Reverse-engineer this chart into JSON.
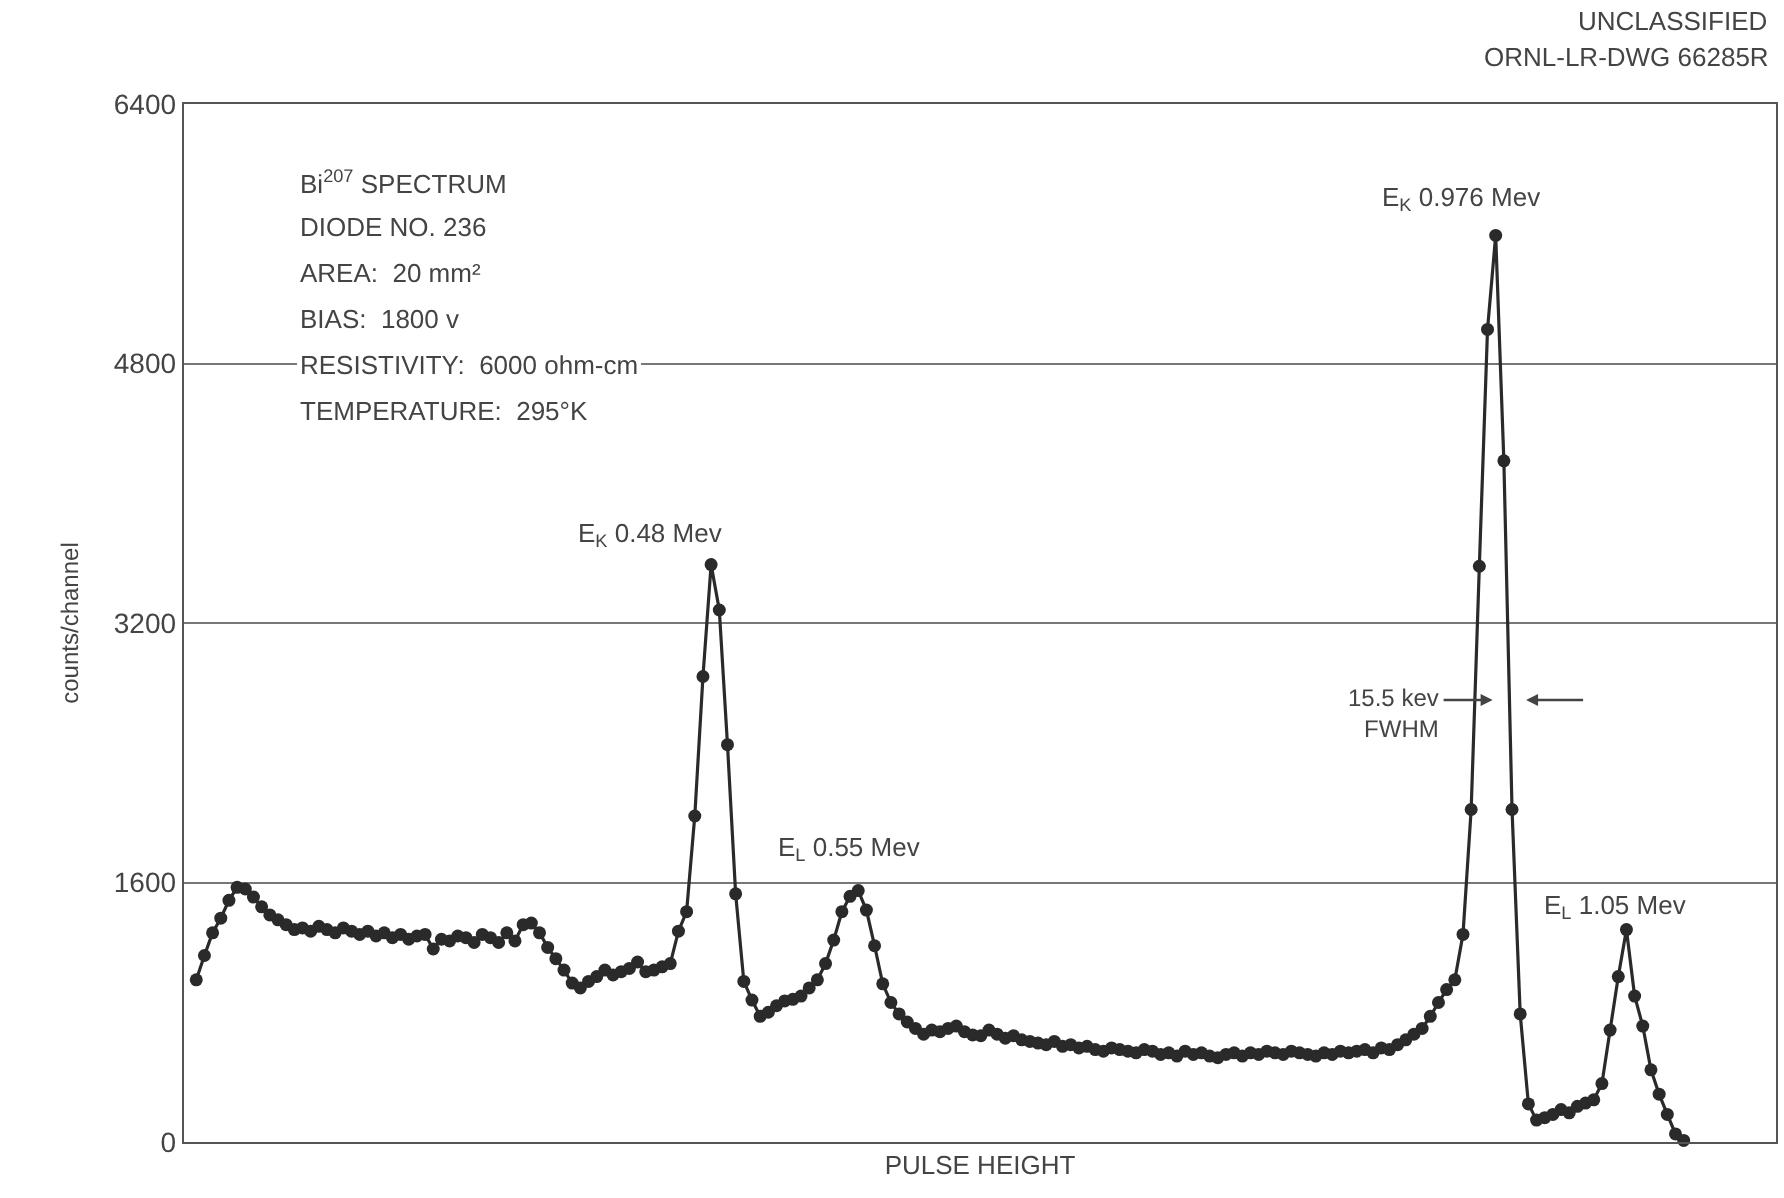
{
  "chart_data": {
    "type": "line",
    "xlabel": "PULSE HEIGHT",
    "ylabel": "counts/channel",
    "ylim": [
      0,
      6400
    ],
    "yticks": [
      0,
      1600,
      3200,
      4800,
      6400
    ],
    "grid": "y",
    "marker": "circle",
    "line_style": "solid",
    "tick_labels": "y",
    "categories": [
      null,
      null,
      null,
      null,
      null,
      null,
      null,
      null,
      null,
      null,
      null,
      null,
      null,
      null,
      null,
      null,
      null,
      null,
      null,
      null,
      null,
      null,
      null,
      null,
      null,
      null,
      null,
      null,
      null,
      null,
      null,
      null,
      null,
      null,
      null,
      null,
      null,
      null,
      null,
      null,
      null,
      null,
      null,
      null,
      null,
      null,
      null,
      null,
      null,
      null,
      null,
      null,
      null,
      null,
      null,
      null,
      null,
      null,
      null,
      null,
      null,
      null,
      null,
      null,
      null,
      null,
      null,
      null,
      null,
      null,
      null,
      null,
      null,
      null,
      null,
      null,
      null,
      null,
      null,
      null,
      null,
      null,
      null,
      null,
      null,
      null,
      null,
      null,
      null,
      null,
      null,
      null,
      null,
      null,
      null,
      null,
      null,
      null,
      null,
      null,
      null,
      null,
      null,
      null,
      null,
      null,
      null,
      null,
      null,
      null,
      null,
      null,
      null,
      null,
      null,
      null,
      null,
      null,
      null,
      null,
      null,
      null,
      null,
      null,
      null,
      null,
      null,
      null,
      null,
      null,
      null,
      null,
      null,
      null,
      null,
      null,
      null,
      null,
      null,
      null,
      null,
      null,
      null,
      null,
      null,
      null,
      null,
      null,
      null,
      null,
      null,
      null,
      null,
      null,
      null,
      null,
      null,
      null,
      null,
      null,
      null,
      null,
      null,
      null,
      null,
      null,
      null,
      null,
      null,
      null,
      null,
      null,
      null,
      null,
      null,
      null,
      null,
      null,
      null,
      null,
      null,
      null,
      null
    ],
    "series": [
      {
        "color": "#2a2a2a",
        "values": [
          1000,
          1150,
          1290,
          1380,
          1490,
          1570,
          1560,
          1510,
          1450,
          1400,
          1370,
          1340,
          1310,
          1320,
          1300,
          1330,
          1310,
          1290,
          1320,
          1300,
          1280,
          1300,
          1270,
          1290,
          1260,
          1280,
          1250,
          1270,
          1280,
          1190,
          1250,
          1240,
          1270,
          1260,
          1230,
          1280,
          1260,
          1230,
          1290,
          1240,
          1340,
          1350,
          1290,
          1200,
          1130,
          1060,
          980,
          950,
          990,
          1020,
          1060,
          1030,
          1050,
          1070,
          1110,
          1050,
          1060,
          1080,
          1100,
          1300,
          1420,
          2010,
          2870,
          3560,
          3280,
          2450,
          1530,
          990,
          875,
          775,
          800,
          840,
          870,
          880,
          900,
          950,
          1000,
          1100,
          1245,
          1420,
          1515,
          1550,
          1430,
          1210,
          975,
          860,
          790,
          740,
          700,
          665,
          690,
          680,
          700,
          715,
          680,
          660,
          655,
          690,
          665,
          640,
          655,
          630,
          620,
          610,
          600,
          620,
          590,
          600,
          580,
          590,
          570,
          560,
          580,
          570,
          560,
          550,
          570,
          560,
          540,
          550,
          530,
          560,
          540,
          550,
          530,
          520,
          540,
          550,
          530,
          550,
          540,
          560,
          550,
          540,
          560,
          550,
          540,
          530,
          550,
          540,
          560,
          550,
          560,
          570,
          550,
          580,
          570,
          600,
          630,
          665,
          700,
          775,
          860,
          940,
          1000,
          1280,
          2050,
          3550,
          5010,
          5590,
          4200,
          2050,
          790,
          235,
          135,
          150,
          170,
          200,
          180,
          220,
          240,
          260,
          360,
          690,
          1020,
          1310,
          900,
          715,
          445,
          295,
          170,
          50,
          10
        ]
      }
    ],
    "annotations": [
      "Bi$^{207}$ SPECTRUM",
      "DIODE NO. 236",
      "AREA:  20 mm²",
      "BIAS:  1800 v",
      "RESISTIVITY:  6000 ohm-cm",
      "TEMPERATURE:  295°K",
      "E$_{K}$ 0.48 Mev",
      "E$_{L}$ 0.55 Mev",
      "E$_{K}$ 0.976 Mev",
      "E$_{L}$ 1.05 Mev",
      "15.5 kev\nFWHM",
      "UNCLASSIFIED",
      "ORNL-LR-DWG 66285R"
    ]
  }
}
